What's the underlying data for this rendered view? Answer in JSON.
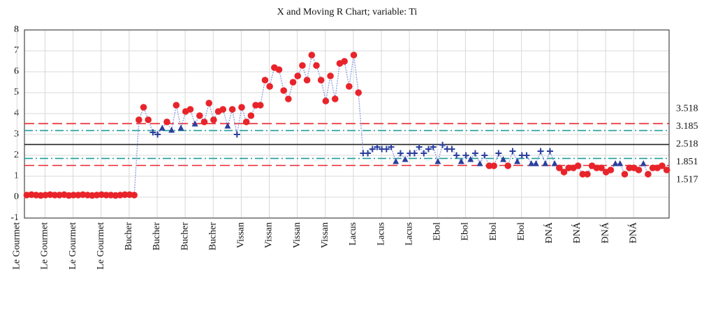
{
  "chart_data": {
    "type": "control",
    "title": "X and Moving R Chart; variable: Ti",
    "categories": [
      "Le Gourmet",
      null,
      null,
      null,
      null,
      null,
      "Le Gourmet",
      null,
      null,
      null,
      null,
      null,
      "Le Gourmet",
      null,
      null,
      null,
      null,
      null,
      "Le Gourmet",
      null,
      null,
      null,
      null,
      null,
      "Bucher",
      null,
      null,
      null,
      null,
      null,
      "Bucher",
      null,
      null,
      null,
      null,
      null,
      "Bucher",
      null,
      null,
      null,
      null,
      null,
      "Bucher",
      null,
      null,
      null,
      null,
      null,
      "Vissan",
      null,
      null,
      null,
      null,
      null,
      "Vissan",
      null,
      null,
      null,
      null,
      null,
      "Vissan",
      null,
      null,
      null,
      null,
      null,
      "Vissan",
      null,
      null,
      null,
      null,
      null,
      "Lacus",
      null,
      null,
      null,
      null,
      null,
      "Lacus",
      null,
      null,
      null,
      null,
      null,
      "Lacus",
      null,
      null,
      null,
      null,
      null,
      "Ebol",
      null,
      null,
      null,
      null,
      null,
      "Ebol",
      null,
      null,
      null,
      null,
      null,
      "Ebol",
      null,
      null,
      null,
      null,
      null,
      "Ebol",
      null,
      null,
      null,
      null,
      null,
      "ĐNÁ",
      null,
      null,
      null,
      null,
      null,
      "ĐNÁ",
      null,
      null,
      null,
      null,
      null,
      "ĐNÁ",
      null,
      null,
      null,
      null,
      null,
      "ĐNÁ",
      null,
      null,
      null,
      null,
      null
    ],
    "values": [
      0.1,
      0.12,
      0.1,
      0.08,
      0.1,
      0.12,
      0.1,
      0.1,
      0.12,
      0.08,
      0.1,
      0.1,
      0.12,
      0.1,
      0.08,
      0.1,
      0.12,
      0.1,
      0.1,
      0.08,
      0.1,
      0.12,
      0.12,
      0.1,
      3.7,
      4.3,
      3.7,
      3.1,
      3.0,
      3.3,
      3.6,
      3.2,
      4.4,
      3.3,
      4.1,
      4.2,
      3.5,
      3.9,
      3.6,
      4.5,
      3.7,
      4.1,
      4.2,
      3.4,
      4.2,
      3.0,
      4.3,
      3.6,
      3.9,
      4.4,
      4.4,
      5.6,
      5.3,
      6.2,
      6.1,
      5.1,
      4.7,
      5.5,
      5.8,
      6.3,
      5.6,
      6.8,
      6.3,
      5.6,
      4.6,
      5.8,
      4.7,
      6.4,
      6.5,
      5.3,
      6.8,
      5.0,
      2.1,
      2.1,
      2.3,
      2.4,
      2.3,
      2.3,
      2.4,
      1.7,
      2.1,
      1.8,
      2.1,
      2.1,
      2.4,
      2.1,
      2.3,
      2.4,
      1.7,
      2.5,
      2.3,
      2.3,
      2.0,
      1.7,
      2.0,
      1.8,
      2.1,
      1.6,
      2.0,
      1.5,
      1.5,
      2.1,
      1.8,
      1.5,
      2.2,
      1.7,
      2.0,
      2.0,
      1.6,
      1.6,
      2.2,
      1.6,
      2.2,
      1.6,
      1.4,
      1.2,
      1.4,
      1.4,
      1.5,
      1.1,
      1.1,
      1.5,
      1.4,
      1.4,
      1.2,
      1.3,
      1.6,
      1.6,
      1.1,
      1.4,
      1.4,
      1.3,
      1.6,
      1.1,
      1.4,
      1.4,
      1.5,
      1.3
    ],
    "ylim": [
      -1,
      8
    ],
    "yticks": [
      -1,
      0,
      1,
      2,
      3,
      4,
      5,
      6,
      7,
      8
    ],
    "grid": true,
    "out_color": "#e8242a",
    "in_color": "#2b3f9c",
    "line_color": "#8d9be0",
    "control_lines": [
      {
        "value": 3.518,
        "color": "#e8242a",
        "style": "dashed"
      },
      {
        "value": 3.185,
        "color": "#1f9e9a",
        "style": "dashdot"
      },
      {
        "value": 2.518,
        "color": "#222222",
        "style": "solid"
      },
      {
        "value": 1.851,
        "color": "#1f9e9a",
        "style": "dashdot"
      },
      {
        "value": 1.517,
        "color": "#e8242a",
        "style": "dashed"
      }
    ]
  }
}
